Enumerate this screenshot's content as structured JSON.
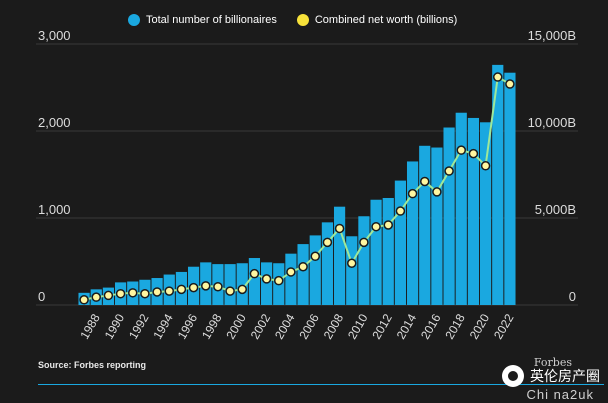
{
  "legend": {
    "billionaires_label": "Total number of billionaires",
    "networth_label": "Combined net worth (billions)"
  },
  "source": "Source: Forbes reporting",
  "watermark": {
    "text": "英伦房产圈",
    "subtext": "Chi na2uk",
    "brand": "Forbes"
  },
  "colors": {
    "background": "#1b1b1b",
    "bar": "#1aa8e0",
    "line": "#9ee89a",
    "point": "#fff6a0",
    "legend_networth": "#f7e23a"
  },
  "chart_data": {
    "type": "bar",
    "categories": [
      "1987",
      "1988",
      "1989",
      "1990",
      "1991",
      "1992",
      "1993",
      "1994",
      "1995",
      "1996",
      "1997",
      "1998",
      "1999",
      "2000",
      "2001",
      "2002",
      "2003",
      "2004",
      "2005",
      "2006",
      "2007",
      "2008",
      "2009",
      "2010",
      "2011",
      "2012",
      "2013",
      "2014",
      "2015",
      "2016",
      "2017",
      "2018",
      "2019",
      "2020",
      "2021",
      "2022"
    ],
    "x_tick_labels": [
      "1988",
      "1990",
      "1992",
      "1994",
      "1996",
      "1998",
      "2000",
      "2002",
      "2004",
      "2006",
      "2008",
      "2010",
      "2012",
      "2014",
      "2016",
      "2018",
      "2020",
      "2022"
    ],
    "series": [
      {
        "name": "Total number of billionaires",
        "type": "bar",
        "axis": "left",
        "values": [
          140,
          180,
          200,
          260,
          270,
          290,
          310,
          350,
          380,
          440,
          490,
          470,
          470,
          480,
          540,
          490,
          480,
          590,
          700,
          800,
          950,
          1130,
          790,
          1020,
          1210,
          1230,
          1430,
          1650,
          1830,
          1810,
          2040,
          2210,
          2150,
          2100,
          2760,
          2670
        ]
      },
      {
        "name": "Combined net worth (billions)",
        "type": "line",
        "axis": "right",
        "values": [
          300,
          450,
          550,
          650,
          700,
          650,
          750,
          800,
          900,
          1000,
          1100,
          1050,
          800,
          900,
          1800,
          1500,
          1400,
          1900,
          2200,
          2800,
          3600,
          4400,
          2400,
          3600,
          4500,
          4600,
          5400,
          6400,
          7100,
          6500,
          7700,
          8900,
          8700,
          8000,
          13100,
          12700
        ]
      }
    ],
    "y_left": {
      "ticks": [
        0,
        1000,
        2000,
        3000
      ],
      "tick_labels": [
        "0",
        "1,000",
        "2,000",
        "3,000"
      ],
      "range": [
        0,
        3000
      ]
    },
    "y_right": {
      "ticks": [
        0,
        5000,
        10000,
        15000
      ],
      "tick_labels": [
        "0",
        "5,000B",
        "10,000B",
        "15,000B"
      ],
      "range": [
        0,
        15000
      ]
    },
    "grid": true,
    "legend_position": "top-center"
  }
}
